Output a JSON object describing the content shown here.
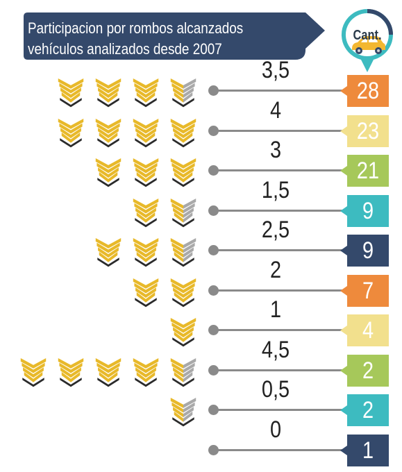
{
  "title": {
    "line1": "Participacion por rombos alcanzados",
    "line2": "vehículos analizados desde 2007"
  },
  "count_header": "Cant.",
  "icons": {
    "full": "gold-chevron-diamond-icon",
    "half": "half-gold-half-silver-chevron-diamond-icon",
    "car": "car-icon"
  },
  "colors": {
    "navy": "#34496b",
    "orange": "#ee8a3c",
    "pale_yellow": "#f2e08d",
    "green": "#a6c85a",
    "teal": "#3dbbc0",
    "gold": "#e8b92a",
    "silver": "#a9a9a9",
    "car": "#f3b731"
  },
  "chart_data": {
    "type": "pictograph",
    "title": "Participacion por rombos alcanzados vehículos analizados desde 2007",
    "value_header": "Cant.",
    "rows": [
      {
        "rating": 3.5,
        "label": "3,5",
        "count": 28,
        "color": "#ee8a3c"
      },
      {
        "rating": 4.0,
        "label": "4",
        "count": 23,
        "color": "#f2e08d"
      },
      {
        "rating": 3.0,
        "label": "3",
        "count": 21,
        "color": "#a6c85a"
      },
      {
        "rating": 1.5,
        "label": "1,5",
        "count": 9,
        "color": "#3dbbc0"
      },
      {
        "rating": 2.5,
        "label": "2,5",
        "count": 9,
        "color": "#34496b"
      },
      {
        "rating": 2.0,
        "label": "2",
        "count": 7,
        "color": "#ee8a3c"
      },
      {
        "rating": 1.0,
        "label": "1",
        "count": 4,
        "color": "#f2e08d"
      },
      {
        "rating": 4.5,
        "label": "4,5",
        "count": 2,
        "color": "#a6c85a"
      },
      {
        "rating": 0.5,
        "label": "0,5",
        "count": 2,
        "color": "#3dbbc0"
      },
      {
        "rating": 0.0,
        "label": "0",
        "count": 1,
        "color": "#34496b"
      }
    ]
  }
}
